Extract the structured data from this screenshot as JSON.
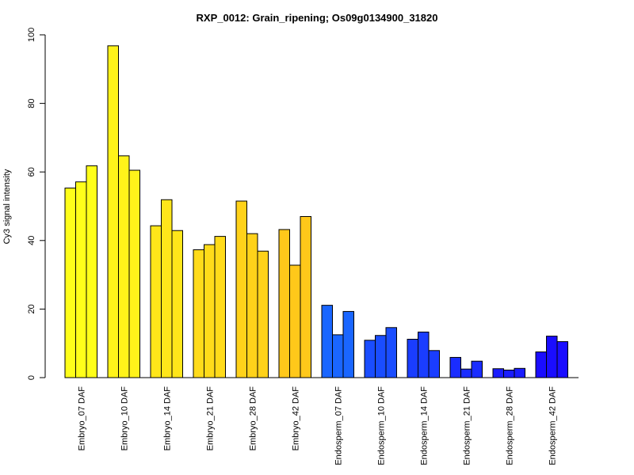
{
  "chart_data": {
    "type": "bar",
    "title": "RXP_0012: Grain_ripening; Os09g0134900_31820",
    "xlabel": "",
    "ylabel": "Cy3 signal intensity",
    "ylim": [
      0,
      100
    ],
    "yticks": [
      0,
      20,
      40,
      60,
      80,
      100
    ],
    "grid": false,
    "legend": "none",
    "categories": [
      "Embryo_07 DAF",
      "Embryo_10 DAF",
      "Embryo_14 DAF",
      "Embryo_21 DAF",
      "Embryo_28 DAF",
      "Embryo_42 DAF",
      "Endosperm_07 DAF",
      "Endosperm_10 DAF",
      "Endosperm_14 DAF",
      "Endosperm_21 DAF",
      "Endosperm_28 DAF",
      "Endosperm_42 DAF"
    ],
    "replicates": [
      [
        55.3,
        57.1,
        61.8
      ],
      [
        96.8,
        64.7,
        60.5
      ],
      [
        44.3,
        51.9,
        42.9
      ],
      [
        37.3,
        38.8,
        41.2
      ],
      [
        51.5,
        42.0,
        36.9
      ],
      [
        43.2,
        32.8,
        47.0
      ],
      [
        21.1,
        12.5,
        19.3
      ],
      [
        10.9,
        12.3,
        14.6
      ],
      [
        11.2,
        13.3,
        7.9
      ],
      [
        5.9,
        2.5,
        4.8
      ],
      [
        2.6,
        2.2,
        2.7
      ],
      [
        7.5,
        12.1,
        10.5
      ]
    ],
    "colors": [
      "#ffff1a",
      "#fff31a",
      "#ffe61a",
      "#ffdb1a",
      "#ffd21a",
      "#ffc81a",
      "#1a66ff",
      "#1a4dff",
      "#1a3dff",
      "#1a2dff",
      "#1a1dff",
      "#1a0dff"
    ]
  }
}
